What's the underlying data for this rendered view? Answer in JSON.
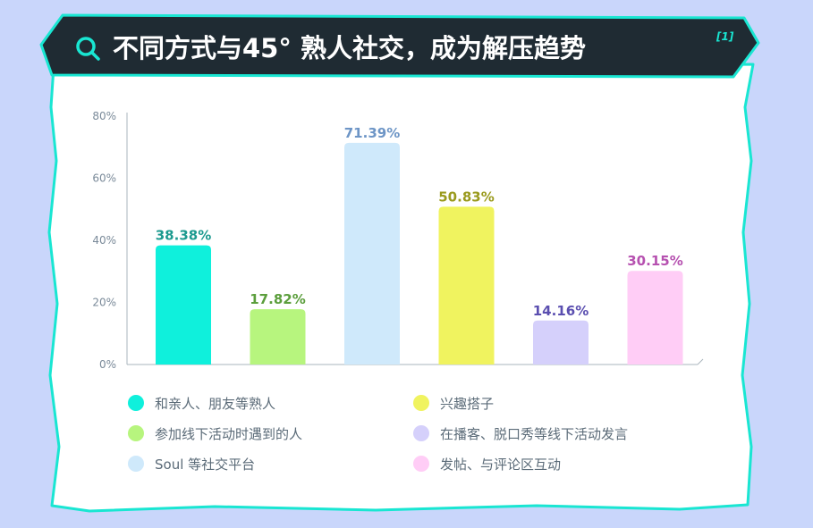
{
  "header": {
    "title": "不同方式与45° 熟人社交，成为解压趋势",
    "citation": "[1]",
    "icon": "search-icon"
  },
  "colors": {
    "page_bg": "#c9d6fb",
    "card_bg": "#ffffff",
    "banner_bg": "#1f2b33",
    "accent": "#19e6d2"
  },
  "chart_data": {
    "type": "bar",
    "categories": [
      "和亲人、朋友等熟人",
      "参加线下活动时遇到的人",
      "Soul 等社交平台",
      "兴趣搭子",
      "在播客、脱口秀等线下活动发言",
      "发帖、与评论区互动"
    ],
    "values": [
      38.38,
      17.82,
      71.39,
      50.83,
      14.16,
      30.15
    ],
    "value_labels": [
      "38.38%",
      "17.82%",
      "71.39%",
      "50.83%",
      "14.16%",
      "30.15%"
    ],
    "bar_colors": [
      "#0ff0dc",
      "#b7f57e",
      "#cfe9fb",
      "#f0f35f",
      "#d5d0fb",
      "#ffcdf6"
    ],
    "label_colors": [
      "#1c9a8f",
      "#5b9e3c",
      "#6d95c6",
      "#9a9a1d",
      "#5b4fb0",
      "#b651b0"
    ],
    "yticks": [
      "0%",
      "20%",
      "40%",
      "60%",
      "80%"
    ],
    "ylim": [
      0,
      80
    ],
    "grid": false,
    "legend": {
      "placement": "bottom",
      "columns": 2,
      "items": [
        "和亲人、朋友等熟人",
        "兴趣搭子",
        "参加线下活动时遇到的人",
        "在播客、脱口秀等线下活动发言",
        "Soul 等社交平台",
        "发帖、与评论区互动"
      ],
      "item_colors": [
        "#0ff0dc",
        "#f0f35f",
        "#b7f57e",
        "#d5d0fb",
        "#cfe9fb",
        "#ffcdf6"
      ]
    }
  }
}
